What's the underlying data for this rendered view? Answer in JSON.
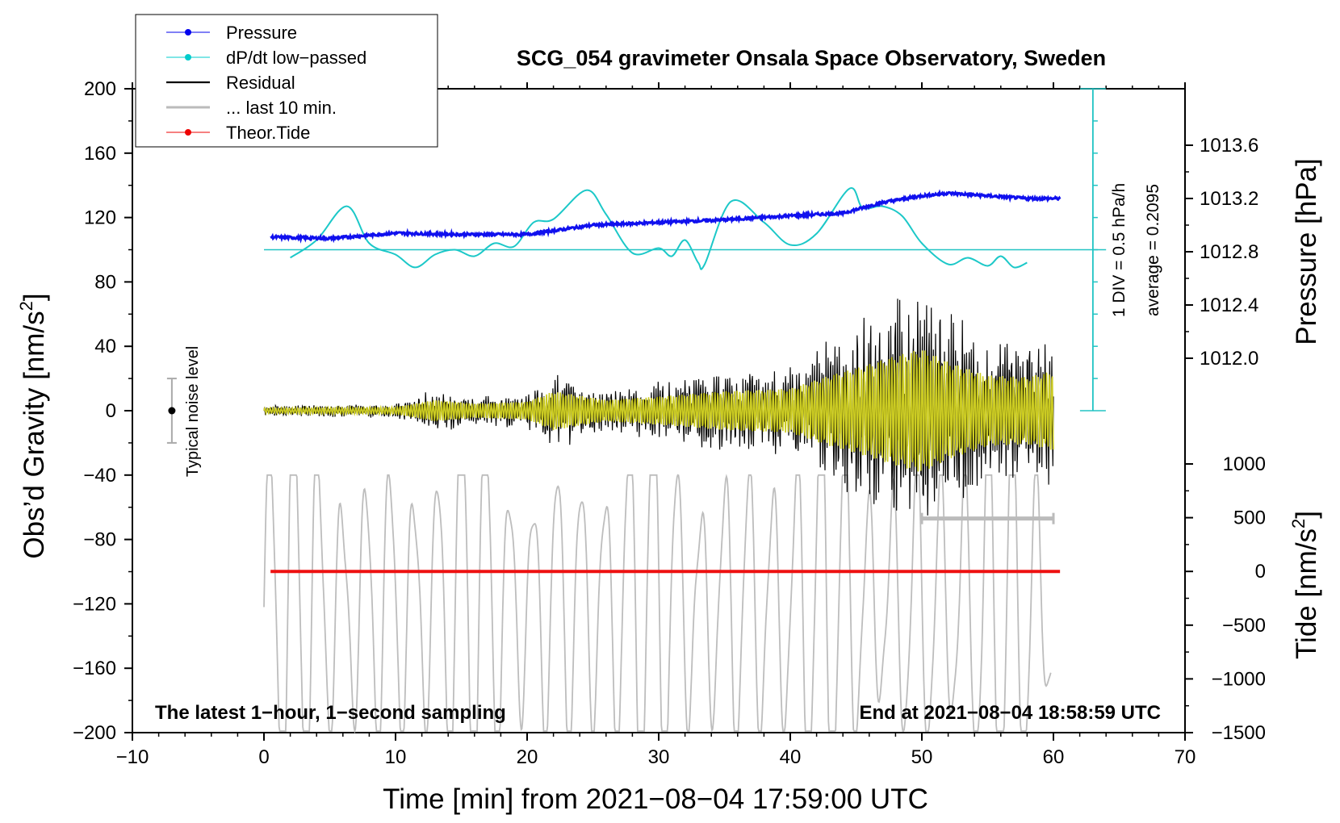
{
  "chart_data": {
    "type": "line",
    "title": "SCG_054 gravimeter Onsala Space Observatory, Sweden",
    "xlabel": "Time [min] from 2021−08−04 17:59:00 UTC",
    "ylabel_main": "Obs’d Gravity [nm/s",
    "ylabel_main_sup": "2",
    "ylabel_main_close": "]",
    "ylabel_pressure": "Pressure [hPa]",
    "ylabel_tide": "Tide [nm/s",
    "ylabel_tide_sup": "2",
    "ylabel_tide_close": "]",
    "xlim": [
      -10,
      70
    ],
    "ylim": [
      -200,
      200
    ],
    "xticks": [
      "−10",
      "0",
      "10",
      "20",
      "30",
      "40",
      "50",
      "60",
      "70"
    ],
    "yticks": [
      "200",
      "160",
      "120",
      "80",
      "40",
      "0",
      "−40",
      "−80",
      "−120",
      "−160",
      "−200"
    ],
    "pressure_ticks": [
      "1013.6",
      "1013.2",
      "1012.8",
      "1012.4",
      "1012.0"
    ],
    "pressure_tick_values": [
      1013.6,
      1013.2,
      1012.8,
      1012.4,
      1012.0
    ],
    "tide_ticks": [
      "1000",
      "500",
      "0",
      "−500",
      "−1000",
      "−1500"
    ],
    "tide_tick_values": [
      1000,
      500,
      0,
      -500,
      -1000,
      -1500
    ],
    "legend": [
      {
        "label": "Pressure",
        "color": "#0000ee",
        "marker": true
      },
      {
        "label": "dP/dt low−passed",
        "color": "#00cccc",
        "marker": true
      },
      {
        "label": "Residual",
        "color": "#000000",
        "marker": false
      },
      {
        "label": "... last 10 min.",
        "color": "#bbbbbb",
        "marker": false
      },
      {
        "label": "Theor.Tide",
        "color": "#ee0000",
        "marker": true
      }
    ],
    "annotations": {
      "bottom_left": "The latest 1−hour, 1−second sampling",
      "bottom_right": "End at 2021−08−04 18:58:59 UTC",
      "scale_div": "1 DIV = 0.5 hPa/h",
      "scale_avg": "average = 0.2095",
      "noise_label": "Typical noise level"
    },
    "noise_bar": {
      "x": -7,
      "center": 0,
      "range": [
        -20,
        20
      ]
    },
    "last10_bar": {
      "x_range": [
        50,
        60
      ],
      "y": -67
    },
    "series": {
      "pressure_hPa": {
        "x": [
          0.5,
          5,
          10,
          15,
          20,
          25,
          30,
          35,
          40,
          44,
          47,
          50,
          52,
          55,
          58,
          60.5
        ],
        "y": [
          1012.91,
          1012.9,
          1012.94,
          1012.93,
          1012.93,
          1013.0,
          1013.02,
          1013.04,
          1013.07,
          1013.09,
          1013.17,
          1013.22,
          1013.24,
          1013.22,
          1013.2,
          1013.2
        ]
      },
      "dPdt_lowpassed": {
        "x": [
          2,
          4,
          6.3,
          8,
          10,
          11.5,
          13,
          14.5,
          16,
          17.5,
          19,
          20.5,
          22,
          24.5,
          26,
          28,
          30,
          31,
          32,
          33,
          33.5,
          35.5,
          38,
          40,
          42,
          44.5,
          45.5,
          47,
          48.5,
          50,
          52,
          53.5,
          55,
          56,
          57,
          58
        ],
        "y": [
          95,
          106,
          127,
          104,
          97,
          89,
          97,
          100,
          96,
          104,
          102,
          117,
          119,
          137,
          122,
          98,
          101,
          96,
          106,
          92,
          91,
          130,
          117,
          103,
          110,
          138,
          126,
          127,
          121,
          104,
          91,
          95,
          90,
          96,
          89,
          92
        ],
        "average_line": 100
      },
      "residual_envelope": {
        "x": [
          0,
          10,
          13,
          16,
          20,
          22,
          26,
          30,
          35,
          40,
          43,
          45,
          48,
          50,
          52,
          55,
          58,
          60
        ],
        "amp": [
          3,
          4,
          12,
          8,
          10,
          22,
          12,
          16,
          22,
          25,
          40,
          48,
          62,
          70,
          55,
          40,
          38,
          45
        ]
      },
      "tide_last10_note": "grey oscillation series approximately ± (80–150) around −120, period ≈ 1.8 min",
      "theor_tide": {
        "x": [
          0.5,
          60.5
        ],
        "y": [
          0,
          0
        ]
      }
    }
  }
}
